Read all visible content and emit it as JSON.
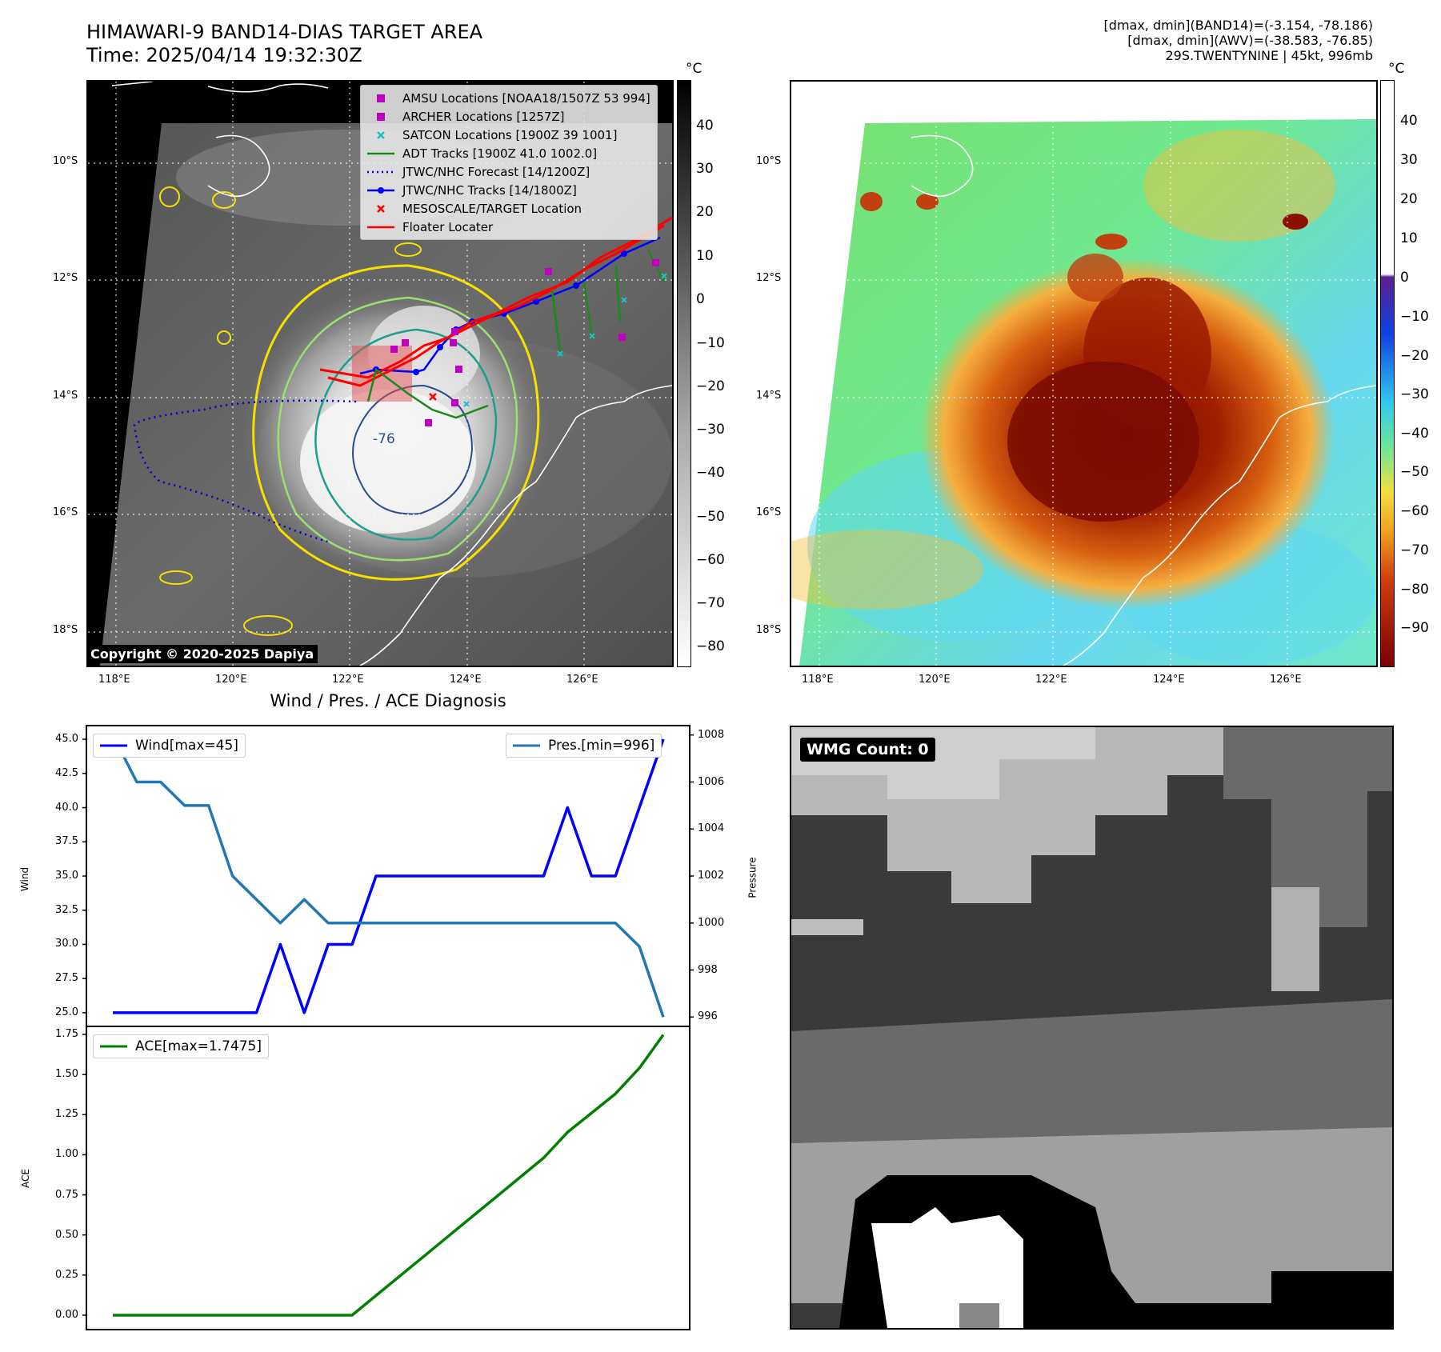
{
  "header": {
    "title_line1": "HIMAWARI-9 BAND14-DIAS TARGET AREA",
    "title_line2": "Time: 2025/04/14 19:32:30Z",
    "info_line1": "[dmax, dmin](BAND14)=(-3.154, -78.186)",
    "info_line2": "[dmax, dmin](AWV)=(-38.583, -76.85)",
    "info_line3": "29S.TWENTYNINE | 45kt, 996mb"
  },
  "map": {
    "lat_labels": [
      "10°S",
      "12°S",
      "14°S",
      "16°S",
      "18°S"
    ],
    "lon_labels": [
      "118°E",
      "120°E",
      "122°E",
      "124°E",
      "126°E"
    ],
    "contour_label": "-76",
    "copyright": "Copyright © 2020-2025 Dapiya"
  },
  "legend": [
    {
      "label": "AMSU Locations [NOAA18/1507Z 53 994]",
      "symbol": "square",
      "color": "#c000c0"
    },
    {
      "label": "ARCHER Locations [1257Z]",
      "symbol": "square",
      "color": "#c000c0"
    },
    {
      "label": "SATCON Locations [1900Z 39 1001]",
      "symbol": "x",
      "color": "#20c0c0"
    },
    {
      "label": "ADT Tracks [1900Z 41.0 1002.0]",
      "symbol": "line",
      "color": "#1a8a1a"
    },
    {
      "label": "JTWC/NHC Forecast [14/1200Z]",
      "symbol": "dotted",
      "color": "#0000d0"
    },
    {
      "label": "JTWC/NHC Tracks [14/1800Z]",
      "symbol": "linedot",
      "color": "#0000ff"
    },
    {
      "label": "MESOSCALE/TARGET Location",
      "symbol": "x",
      "color": "#ff0000"
    },
    {
      "label": "Floater Locater",
      "symbol": "line",
      "color": "#ff0000"
    }
  ],
  "colorbar1": {
    "unit": "°C",
    "ticks": [
      "40",
      "30",
      "20",
      "10",
      "0",
      "−10",
      "−20",
      "−30",
      "−40",
      "−50",
      "−60",
      "−70",
      "−80"
    ]
  },
  "colorbar2": {
    "unit": "°C",
    "ticks": [
      "40",
      "30",
      "20",
      "10",
      "0",
      "−10",
      "−20",
      "−30",
      "−40",
      "−50",
      "−60",
      "−70",
      "−80",
      "−90"
    ]
  },
  "chart_data": {
    "type": "line",
    "title": "Wind / Pres. / ACE Diagnosis",
    "top_panel": {
      "ylabel": "Wind",
      "y2label": "Pressure",
      "ylim": [
        24.0,
        46.0
      ],
      "y2lim": [
        995.6,
        1008.4
      ],
      "yticks": [
        "45.0",
        "42.5",
        "40.0",
        "37.5",
        "35.0",
        "32.5",
        "30.0",
        "27.5",
        "25.0"
      ],
      "y2ticks": [
        "1008",
        "1006",
        "1004",
        "1002",
        "1000",
        "998",
        "996"
      ],
      "series": [
        {
          "name": "Wind[max=45]",
          "axis": "left",
          "color": "#0000ff",
          "values": [
            25,
            25,
            25,
            25,
            25,
            25,
            25,
            30,
            25,
            30,
            30,
            35,
            35,
            35,
            35,
            35,
            35,
            35,
            35,
            40,
            35,
            35,
            40,
            45
          ]
        },
        {
          "name": "Pres.[min=996]",
          "axis": "right",
          "color": "#1f77b4",
          "values": [
            1008,
            1006,
            1006,
            1005,
            1005,
            1002,
            1001,
            1000,
            1001,
            1000,
            1000,
            1000,
            1000,
            1000,
            1000,
            1000,
            1000,
            1000,
            1000,
            1000,
            1000,
            1000,
            999,
            996
          ]
        }
      ]
    },
    "bottom_panel": {
      "ylabel": "ACE",
      "ylim": [
        -0.09,
        1.8
      ],
      "yticks": [
        "1.75",
        "1.50",
        "1.25",
        "1.00",
        "0.75",
        "0.50",
        "0.25",
        "0.00"
      ],
      "series": [
        {
          "name": "ACE[max=1.7475]",
          "color": "#008000",
          "values": [
            0,
            0,
            0,
            0,
            0,
            0,
            0,
            0,
            0,
            0,
            0,
            0.1225,
            0.245,
            0.3675,
            0.49,
            0.6125,
            0.735,
            0.8575,
            0.98,
            1.14,
            1.26,
            1.38,
            1.54,
            1.7475
          ]
        }
      ]
    }
  },
  "wmg": {
    "label": "WMG Count: 0"
  }
}
